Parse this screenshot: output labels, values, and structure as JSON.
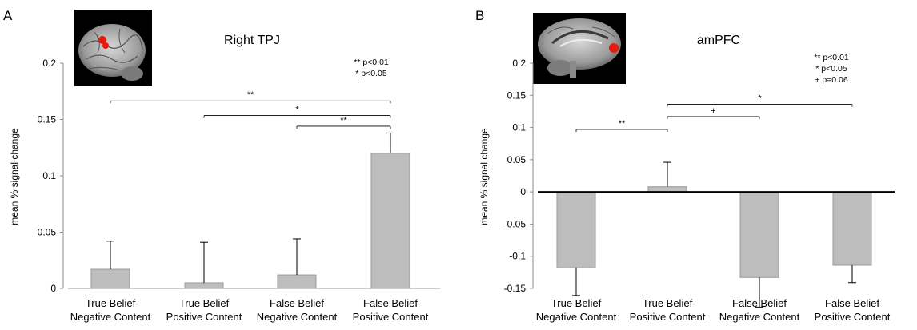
{
  "chart_data": [
    {
      "type": "bar",
      "panel_label": "A",
      "title": "Right TPJ",
      "ylabel": "mean % signal change",
      "ylim": [
        0,
        0.2
      ],
      "yticks": [
        0,
        0.05,
        0.1,
        0.15,
        0.2
      ],
      "ytick_labels": [
        "0",
        "0.05",
        "0.1",
        "0.15",
        "0.2"
      ],
      "categories": [
        [
          "True Belief",
          "Negative Content"
        ],
        [
          "True Belief",
          "Positive Content"
        ],
        [
          "False Belief",
          "Negative Content"
        ],
        [
          "False Belief",
          "Positive Content"
        ]
      ],
      "values": [
        0.017,
        0.005,
        0.012,
        0.12
      ],
      "errors": [
        0.025,
        0.036,
        0.032,
        0.018
      ],
      "bar_color": "#bdbdbd",
      "legend": [
        "** p<0.01",
        "* p<0.05"
      ],
      "brain_view": "lateral",
      "significance": [
        {
          "from": 0,
          "to": 3,
          "y": 0.1665,
          "label": "**"
        },
        {
          "from": 1,
          "to": 3,
          "y": 0.1535,
          "label": "*"
        },
        {
          "from": 2,
          "to": 3,
          "y": 0.144,
          "label": "**"
        }
      ]
    },
    {
      "type": "bar",
      "panel_label": "B",
      "title": "amPFC",
      "ylabel": "mean % signal change",
      "ylim": [
        -0.15,
        0.2
      ],
      "yticks": [
        -0.15,
        -0.1,
        -0.05,
        0,
        0.05,
        0.1,
        0.15,
        0.2
      ],
      "ytick_labels": [
        "-0.15",
        "-0.1",
        "-0.05",
        "0",
        "0.05",
        "0.1",
        "0.15",
        "0.2"
      ],
      "categories": [
        [
          "True Belief",
          "Negative Content"
        ],
        [
          "True Belief",
          "Positive Content"
        ],
        [
          "False Belief",
          "Negative Content"
        ],
        [
          "False Belief",
          "Positive Content"
        ]
      ],
      "values": [
        -0.118,
        0.008,
        -0.133,
        -0.114
      ],
      "errors": [
        0.043,
        0.038,
        0.046,
        0.027
      ],
      "bar_color": "#bdbdbd",
      "legend": [
        "** p<0.01",
        "* p<0.05",
        "+ p=0.06"
      ],
      "brain_view": "medial",
      "significance": [
        {
          "from": 0,
          "to": 1,
          "y": 0.097,
          "label": "**"
        },
        {
          "from": 1,
          "to": 3,
          "y": 0.136,
          "label": "*"
        },
        {
          "from": 1,
          "to": 2,
          "y": 0.117,
          "label": "+"
        }
      ]
    }
  ]
}
